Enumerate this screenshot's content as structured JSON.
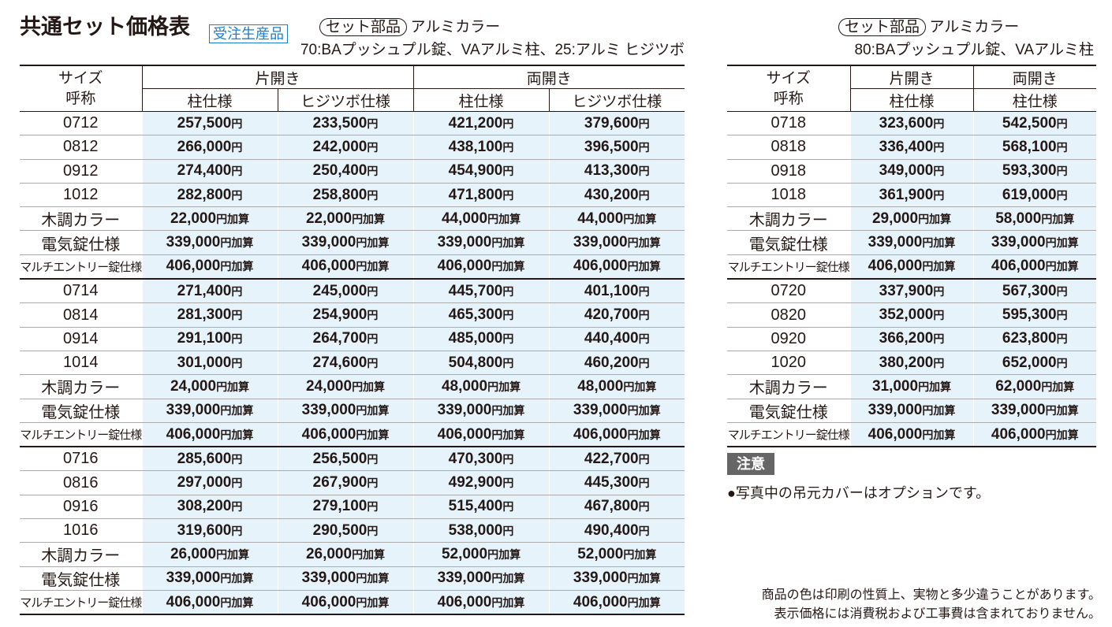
{
  "header": {
    "title": "共通セット価格表",
    "badge": "受注生産品"
  },
  "left": {
    "set_label": "セット部品",
    "color": "アルミカラー",
    "spec": "70:BAプッシュプル錠、VAアルミ柱、25:アルミ ヒジツボ",
    "table": {
      "size_header": [
        "サイズ",
        "呼称"
      ],
      "groups": [
        "片開き",
        "両開き"
      ],
      "subheaders": [
        "柱仕様",
        "ヒジツボ仕様",
        "柱仕様",
        "ヒジツボ仕様"
      ],
      "rows": [
        [
          "0712",
          "257,500円",
          "233,500円",
          "421,200円",
          "379,600円"
        ],
        [
          "0812",
          "266,000円",
          "242,000円",
          "438,100円",
          "396,500円"
        ],
        [
          "0912",
          "274,400円",
          "250,400円",
          "454,900円",
          "413,300円"
        ],
        [
          "1012",
          "282,800円",
          "258,800円",
          "471,800円",
          "430,200円"
        ],
        [
          "木調カラー",
          "22,000円加算",
          "22,000円加算",
          "44,000円加算",
          "44,000円加算"
        ],
        [
          "電気錠仕様",
          "339,000円加算",
          "339,000円加算",
          "339,000円加算",
          "339,000円加算"
        ],
        [
          "マルチエントリー錠仕様",
          "406,000円加算",
          "406,000円加算",
          "406,000円加算",
          "406,000円加算"
        ],
        [
          "0714",
          "271,400円",
          "245,000円",
          "445,700円",
          "401,100円"
        ],
        [
          "0814",
          "281,300円",
          "254,900円",
          "465,300円",
          "420,700円"
        ],
        [
          "0914",
          "291,100円",
          "264,700円",
          "485,000円",
          "440,400円"
        ],
        [
          "1014",
          "301,000円",
          "274,600円",
          "504,800円",
          "460,200円"
        ],
        [
          "木調カラー",
          "24,000円加算",
          "24,000円加算",
          "48,000円加算",
          "48,000円加算"
        ],
        [
          "電気錠仕様",
          "339,000円加算",
          "339,000円加算",
          "339,000円加算",
          "339,000円加算"
        ],
        [
          "マルチエントリー錠仕様",
          "406,000円加算",
          "406,000円加算",
          "406,000円加算",
          "406,000円加算"
        ],
        [
          "0716",
          "285,600円",
          "256,500円",
          "470,300円",
          "422,700円"
        ],
        [
          "0816",
          "297,000円",
          "267,900円",
          "492,900円",
          "445,300円"
        ],
        [
          "0916",
          "308,200円",
          "279,100円",
          "515,400円",
          "467,800円"
        ],
        [
          "1016",
          "319,600円",
          "290,500円",
          "538,000円",
          "490,400円"
        ],
        [
          "木調カラー",
          "26,000円加算",
          "26,000円加算",
          "52,000円加算",
          "52,000円加算"
        ],
        [
          "電気錠仕様",
          "339,000円加算",
          "339,000円加算",
          "339,000円加算",
          "339,000円加算"
        ],
        [
          "マルチエントリー錠仕様",
          "406,000円加算",
          "406,000円加算",
          "406,000円加算",
          "406,000円加算"
        ]
      ]
    }
  },
  "right": {
    "set_label": "セット部品",
    "color": "アルミカラー",
    "spec": "80:BAプッシュプル錠、VAアルミ柱",
    "table": {
      "size_header": [
        "サイズ",
        "呼称"
      ],
      "groups": [
        "片開き",
        "両開き"
      ],
      "subheaders": [
        "柱仕様",
        "柱仕様"
      ],
      "rows": [
        [
          "0718",
          "323,600円",
          "542,500円"
        ],
        [
          "0818",
          "336,400円",
          "568,100円"
        ],
        [
          "0918",
          "349,000円",
          "593,300円"
        ],
        [
          "1018",
          "361,900円",
          "619,000円"
        ],
        [
          "木調カラー",
          "29,000円加算",
          "58,000円加算"
        ],
        [
          "電気錠仕様",
          "339,000円加算",
          "339,000円加算"
        ],
        [
          "マルチエントリー錠仕様",
          "406,000円加算",
          "406,000円加算"
        ],
        [
          "0720",
          "337,900円",
          "567,300円"
        ],
        [
          "0820",
          "352,000円",
          "595,300円"
        ],
        [
          "0920",
          "366,200円",
          "623,800円"
        ],
        [
          "1020",
          "380,200円",
          "652,000円"
        ],
        [
          "木調カラー",
          "31,000円加算",
          "62,000円加算"
        ],
        [
          "電気錠仕様",
          "339,000円加算",
          "339,000円加算"
        ],
        [
          "マルチエントリー錠仕様",
          "406,000円加算",
          "406,000円加算"
        ]
      ]
    }
  },
  "notice": {
    "badge": "注意",
    "text": "●写真中の吊元カバーはオプションです。"
  },
  "footer": [
    "商品の色は印刷の性質上、実物と多少違うことがあります。",
    "表示価格には消費税および工事費は含まれておりません。"
  ]
}
